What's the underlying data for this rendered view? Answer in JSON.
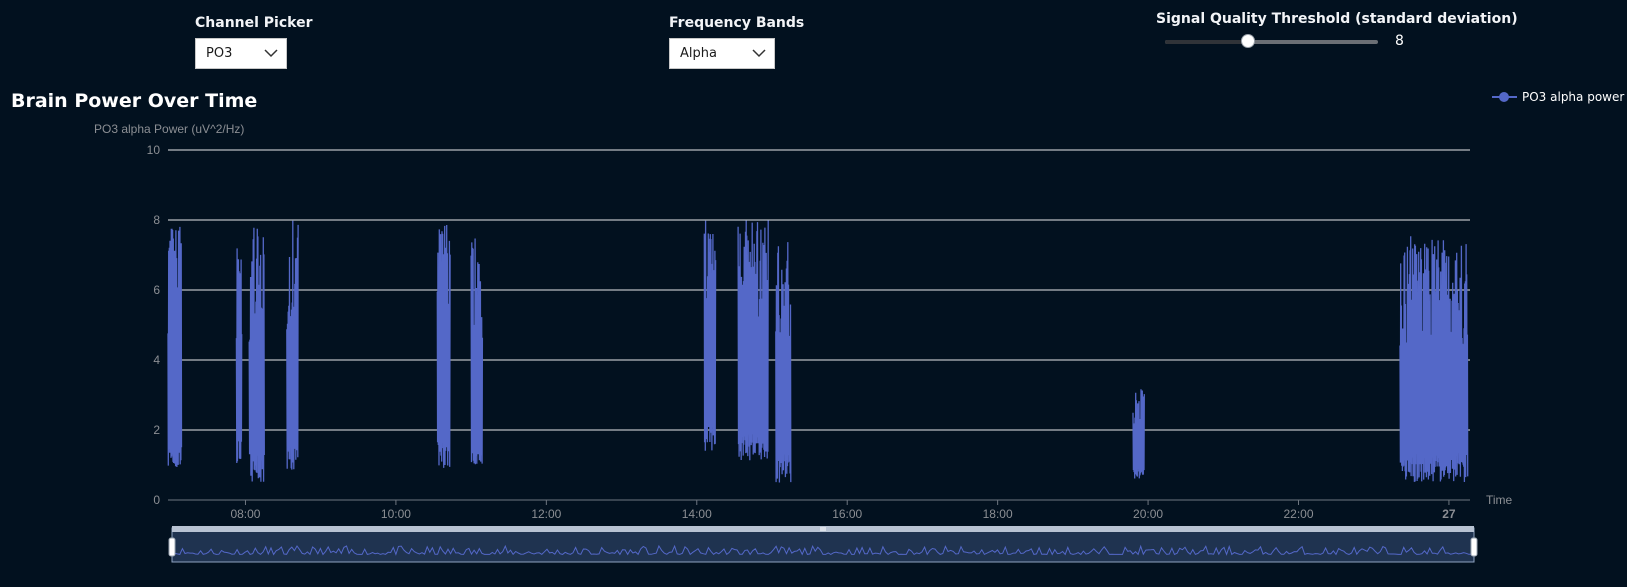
{
  "controls": {
    "channel_picker": {
      "label": "Channel Picker",
      "value": "PO3"
    },
    "frequency_bands": {
      "label": "Frequency Bands",
      "value": "Alpha"
    },
    "signal_quality": {
      "label": "Signal Quality Threshold (standard deviation)",
      "value": 8,
      "value_text": "8",
      "position_fraction": 0.39
    }
  },
  "chart": {
    "title": "Brain Power Over Time",
    "legend": "PO3 alpha power",
    "series_color": "#5468c8",
    "background": "#02111f",
    "grid_color": "#ffffff",
    "axis_text_color": "#8c8f94",
    "zoom_icon": "drag-handle-icon"
  },
  "chart_data": {
    "type": "line",
    "title": "Brain Power Over Time",
    "ylabel": "PO3 alpha Power (uV^2/Hz)",
    "xlabel": "Time",
    "ylim": [
      0,
      10
    ],
    "yticks": [
      0,
      2,
      4,
      6,
      8,
      10
    ],
    "ytick_labels": [
      "0",
      "2",
      "4",
      "6",
      "8",
      "10"
    ],
    "xlim_hours": [
      6.97,
      24.28
    ],
    "xticks_hours": [
      8,
      10,
      12,
      14,
      16,
      18,
      20,
      22,
      24
    ],
    "xtick_labels": [
      "08:00",
      "10:00",
      "12:00",
      "14:00",
      "16:00",
      "18:00",
      "20:00",
      "22:00",
      "27"
    ],
    "grid": "horizontal",
    "legend_position": "top-right",
    "series": [
      {
        "name": "PO3 alpha power",
        "note_hours_unit": "hours of day",
        "bursts": [
          {
            "start": 6.97,
            "end": 7.15,
            "low": 0.8,
            "high": 8.0
          },
          {
            "start": 7.88,
            "end": 7.95,
            "low": 1.0,
            "high": 7.2
          },
          {
            "start": 8.05,
            "end": 8.25,
            "low": 0.5,
            "high": 7.8
          },
          {
            "start": 8.55,
            "end": 8.7,
            "low": 0.8,
            "high": 8.0
          },
          {
            "start": 10.55,
            "end": 10.72,
            "low": 0.9,
            "high": 8.0
          },
          {
            "start": 11.0,
            "end": 11.15,
            "low": 1.0,
            "high": 7.6
          },
          {
            "start": 14.1,
            "end": 14.25,
            "low": 1.4,
            "high": 8.0
          },
          {
            "start": 14.55,
            "end": 14.95,
            "low": 1.1,
            "high": 8.0
          },
          {
            "start": 15.05,
            "end": 15.25,
            "low": 0.5,
            "high": 7.6
          },
          {
            "start": 19.8,
            "end": 19.95,
            "low": 0.6,
            "high": 3.2
          },
          {
            "start": 23.35,
            "end": 24.25,
            "low": 0.5,
            "high": 7.6
          }
        ]
      }
    ]
  }
}
